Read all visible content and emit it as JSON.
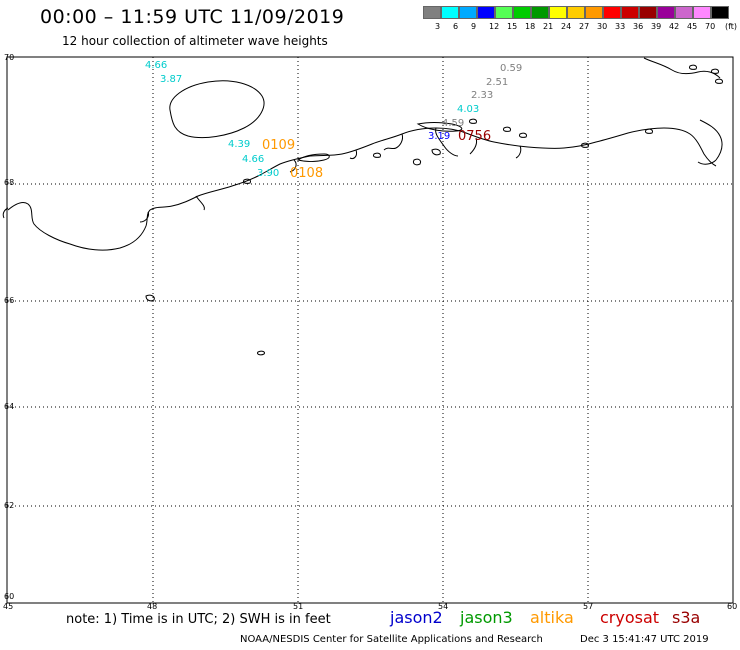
{
  "header": {
    "title": "00:00 – 11:59 UTC 11/09/2019",
    "subtitle": "12 hour collection of altimeter wave heights"
  },
  "legend": {
    "colors": [
      "#808080",
      "#00ffff",
      "#00aaff",
      "#0000ff",
      "#55ff55",
      "#00cc00",
      "#009900",
      "#ffff00",
      "#ffcc00",
      "#ff9900",
      "#ff0000",
      "#cc0000",
      "#990000",
      "#990099",
      "#cc66cc",
      "#ff88ff",
      "#000000"
    ],
    "labels": [
      "3",
      "6",
      "9",
      "12",
      "15",
      "18",
      "21",
      "24",
      "27",
      "30",
      "33",
      "36",
      "39",
      "42",
      "45",
      "70",
      "(ft)"
    ]
  },
  "axes": {
    "lat_labels": [
      "70",
      "68",
      "66",
      "64",
      "62",
      "60"
    ],
    "lon_labels": [
      "45",
      "48",
      "51",
      "54",
      "57",
      "60"
    ]
  },
  "wave_labels": [
    {
      "text": "4.66",
      "color": "#00cccc"
    },
    {
      "text": "3.87",
      "color": "#00cccc"
    },
    {
      "text": "4.39",
      "color": "#00cccc"
    },
    {
      "text": "4.66",
      "color": "#00cccc"
    },
    {
      "text": "3.90",
      "color": "#00cccc"
    },
    {
      "text": "0109",
      "color": "#ff9900"
    },
    {
      "text": "0108",
      "color": "#ff9900"
    },
    {
      "text": "0.59",
      "color": "#808080"
    },
    {
      "text": "2.51",
      "color": "#808080"
    },
    {
      "text": "2.33",
      "color": "#808080"
    },
    {
      "text": "4.03",
      "color": "#00cccc"
    },
    {
      "text": "4.59",
      "color": "#808080"
    },
    {
      "text": "3.19",
      "color": "#0000ff"
    },
    {
      "text": "0756",
      "color": "#990000"
    }
  ],
  "footer": {
    "note": "note: 1) Time is in UTC; 2) SWH is in feet",
    "satellites": [
      {
        "name": "jason2",
        "color": "#0000cc"
      },
      {
        "name": "jason3",
        "color": "#009900"
      },
      {
        "name": "altika",
        "color": "#ff9900"
      },
      {
        "name": "cryosat",
        "color": "#cc0000"
      },
      {
        "name": "s3a",
        "color": "#990000"
      }
    ],
    "credit": "NOAA/NESDIS Center for Satellite Applications and Research",
    "timestamp": "Dec  3 15:41:47 UTC 2019"
  }
}
